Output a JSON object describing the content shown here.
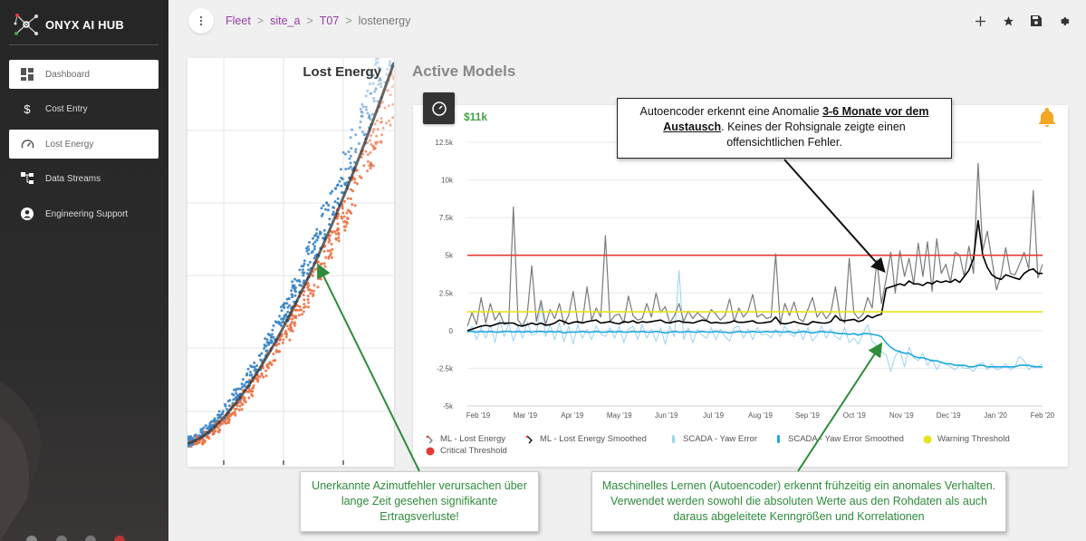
{
  "app": {
    "name": "ONYX AI HUB"
  },
  "sidebar": {
    "items": [
      {
        "label": "Dashboard",
        "icon": "dashboard-icon",
        "active": true
      },
      {
        "label": "Cost Entry",
        "icon": "dollar-icon",
        "active": false
      },
      {
        "label": "Lost Energy",
        "icon": "gauge-icon",
        "active": true
      },
      {
        "label": "Data Streams",
        "icon": "data-streams-icon",
        "active": false
      },
      {
        "label": "Engineering Support",
        "icon": "user-circle-icon",
        "active": false
      }
    ]
  },
  "header": {
    "menu_icon": "more-vertical-icon",
    "breadcrumb": [
      {
        "label": "Fleet",
        "sep": ">"
      },
      {
        "label": "site_a",
        "sep": ">"
      },
      {
        "label": "T07",
        "sep": ">"
      },
      {
        "label": "lostenergy",
        "sep": ""
      }
    ],
    "tools": [
      "add-icon",
      "star-icon",
      "save-icon",
      "settings-icon"
    ]
  },
  "left_card": {
    "title": "Lost Energy"
  },
  "right_card": {
    "section_title": "Active Models",
    "value": "$11k",
    "gauge_icon": "gauge-icon",
    "alert_icon": "bell-icon",
    "alert_color": "#f5a623"
  },
  "chart_data": {
    "type": "line",
    "title": "",
    "xlabel": "",
    "ylabel": "",
    "ylim": [
      -5000,
      12500
    ],
    "yticks": [
      "12.5k",
      "10k",
      "7.5k",
      "5k",
      "2.5k",
      "0",
      "-2.5k",
      "-5k"
    ],
    "x_labels": [
      "Feb '19",
      "Mar '19",
      "Apr '19",
      "May '19",
      "Jun '19",
      "Jul '19",
      "Aug '19",
      "Sep '19",
      "Oct '19",
      "Nov '19",
      "Dec '19",
      "Jan '20",
      "Feb '20"
    ],
    "grid": true,
    "legend_position": "bottom",
    "series": [
      {
        "name": "ML - Lost Energy",
        "color": "#7a7a7a",
        "values": [
          300,
          1200,
          400,
          2200,
          500,
          1800,
          700,
          1200,
          400,
          500,
          8200,
          700,
          300,
          1000,
          4300,
          600,
          2000,
          400,
          1400,
          800,
          1800,
          400,
          1000,
          2600,
          500,
          600,
          2900,
          700,
          1500,
          900,
          6300,
          600,
          1000,
          1100,
          500,
          2300,
          1000,
          700,
          800,
          1800,
          900,
          2500,
          1200,
          1600,
          500,
          1000,
          1800,
          600,
          1300,
          800,
          1200,
          900,
          700,
          1400,
          1100,
          700,
          1000,
          2100,
          600,
          1500,
          900,
          1300,
          2400,
          900,
          1100,
          800,
          900,
          5100,
          400,
          1800,
          1000,
          1900,
          800,
          600,
          1400,
          2200,
          900,
          1300,
          800,
          1200,
          2900,
          900,
          500,
          4800,
          1200,
          800,
          1100,
          2200,
          1500,
          4700,
          1800,
          3400,
          5200,
          2500,
          5300,
          3600,
          4800,
          3100,
          5800,
          3600,
          5900,
          2600,
          6100,
          3800,
          4400,
          3200,
          5200,
          5000,
          3600,
          5600,
          3800,
          11100,
          5300,
          6600,
          4700,
          2700,
          3700,
          5500,
          3800,
          3700,
          4400,
          5200,
          4100,
          9300,
          3500,
          4400
        ]
      },
      {
        "name": "ML - Lost Energy Smoothed",
        "color": "#000000",
        "values": [
          0,
          100,
          200,
          300,
          350,
          300,
          400,
          500,
          500,
          500,
          500,
          350,
          300,
          400,
          500,
          400,
          500,
          350,
          400,
          500,
          700,
          600,
          450,
          550,
          600,
          500,
          600,
          650,
          700,
          500,
          550,
          600,
          500,
          450,
          600,
          550,
          650,
          500,
          600,
          550,
          600,
          650,
          700,
          550,
          500,
          600,
          650,
          550,
          550,
          500,
          600,
          700,
          650,
          500,
          550,
          500,
          500,
          550,
          650,
          550,
          550,
          600,
          650,
          500,
          500,
          550,
          600,
          900,
          500,
          450,
          500,
          600,
          500,
          450,
          400,
          600,
          550,
          500,
          500,
          600,
          1000,
          700,
          650,
          700,
          750,
          600,
          700,
          1000,
          850,
          1000,
          1100,
          2800,
          2900,
          3000,
          3100,
          3000,
          3300,
          3100,
          3100,
          3000,
          3200,
          3100,
          3300,
          3200,
          3300,
          3200,
          3400,
          3200,
          3600,
          4000,
          4800,
          7300,
          5000,
          4200,
          3700,
          3500,
          3400,
          3700,
          3600,
          3500,
          3400,
          3800,
          4000,
          4100,
          3800,
          3800
        ]
      },
      {
        "name": "SCADA - Yaw Error",
        "color": "#9ad3f0",
        "values": [
          -200,
          300,
          -600,
          200,
          -500,
          400,
          -800,
          700,
          -400,
          500,
          -700,
          300,
          -500,
          600,
          -300,
          -200,
          1800,
          -400,
          400,
          -600,
          500,
          -700,
          300,
          -900,
          400,
          -500,
          100,
          -600,
          300,
          -200,
          -400,
          200,
          -500,
          300,
          -800,
          100,
          300,
          -600,
          400,
          -500,
          100,
          -700,
          200,
          -900,
          300,
          -400,
          4000,
          -600,
          200,
          -800,
          100,
          -300,
          -500,
          200,
          -600,
          100,
          -400,
          -700,
          200,
          300,
          -500,
          100,
          -600,
          200,
          -300,
          -200,
          -500,
          100,
          -400,
          300,
          -200,
          -400,
          100,
          -600,
          200,
          -700,
          -300,
          300,
          -500,
          100,
          -400,
          -600,
          200,
          -800,
          -500,
          -900,
          -200,
          400,
          -700,
          -1000,
          -1400,
          -1600,
          -2700,
          -1700,
          -1300,
          -2400,
          -1100,
          -1800,
          -2000,
          -1500,
          -2300,
          -1900,
          -2600,
          -2100,
          -2200,
          -2400,
          -2600,
          -2300,
          -2500,
          -2500,
          -2700,
          -2300,
          -2100,
          -2600,
          -2200,
          -2600,
          -2500,
          -2200,
          -2600,
          -2400,
          -1700,
          -2000,
          -2600,
          -2300,
          -2400,
          -2200
        ]
      },
      {
        "name": "SCADA - Yaw Error Smoothed",
        "color": "#1ea6e0",
        "values": [
          -50,
          -50,
          -100,
          -50,
          -100,
          -50,
          -100,
          -100,
          -50,
          -50,
          -100,
          -50,
          -100,
          -50,
          -100,
          -50,
          -50,
          -100,
          -50,
          -100,
          -50,
          -150,
          -100,
          -100,
          -100,
          -50,
          -100,
          -100,
          -50,
          -100,
          -100,
          -50,
          -100,
          -50,
          -100,
          -100,
          -50,
          -100,
          -50,
          -100,
          -100,
          -50,
          -100,
          -150,
          -100,
          -50,
          -100,
          -100,
          -50,
          -100,
          -100,
          -50,
          -100,
          -100,
          -50,
          -100,
          -100,
          -150,
          -100,
          -50,
          -100,
          -100,
          -50,
          -100,
          -100,
          -50,
          -100,
          -50,
          -100,
          -100,
          -50,
          -150,
          -100,
          -50,
          -100,
          -150,
          -100,
          -50,
          -100,
          -100,
          -150,
          -200,
          -200,
          -250,
          -200,
          -300,
          -200,
          -200,
          -250,
          -300,
          -400,
          -800,
          -1100,
          -1300,
          -1400,
          -1500,
          -1500,
          -1700,
          -1800,
          -1800,
          -1900,
          -2000,
          -2000,
          -2100,
          -2200,
          -2200,
          -2300,
          -2300,
          -2300,
          -2400,
          -2400,
          -2300,
          -2300,
          -2400,
          -2400,
          -2400,
          -2400,
          -2400,
          -2400,
          -2400,
          -2300,
          -2300,
          -2300,
          -2400,
          -2400,
          -2400
        ]
      },
      {
        "name": "Warning Threshold",
        "color": "#e8e21a",
        "constant": 1250
      },
      {
        "name": "Critical Threshold",
        "color": "#e53935",
        "constant": 5000
      }
    ]
  },
  "callouts": {
    "anomaly": {
      "pre": "Autoencoder erkennt eine Anomalie ",
      "bold": "3-6 Monate vor dem Austausch",
      "post": ". Keines der Rohsignale zeigte einen offensichtlichen Fehler."
    },
    "yaw": "Unerkannte Azimutfehler verursachen über lange Zeit gesehen signifikante Ertragsverluste!",
    "ml": "Maschinelles Lernen (Autoencoder) erkennt frühzeitig ein anomales Verhalten. Verwendet werden sowohl die absoluten Werte aus den Rohdaten als auch daraus abgeleitete Kenngrößen und Korrelationen"
  }
}
